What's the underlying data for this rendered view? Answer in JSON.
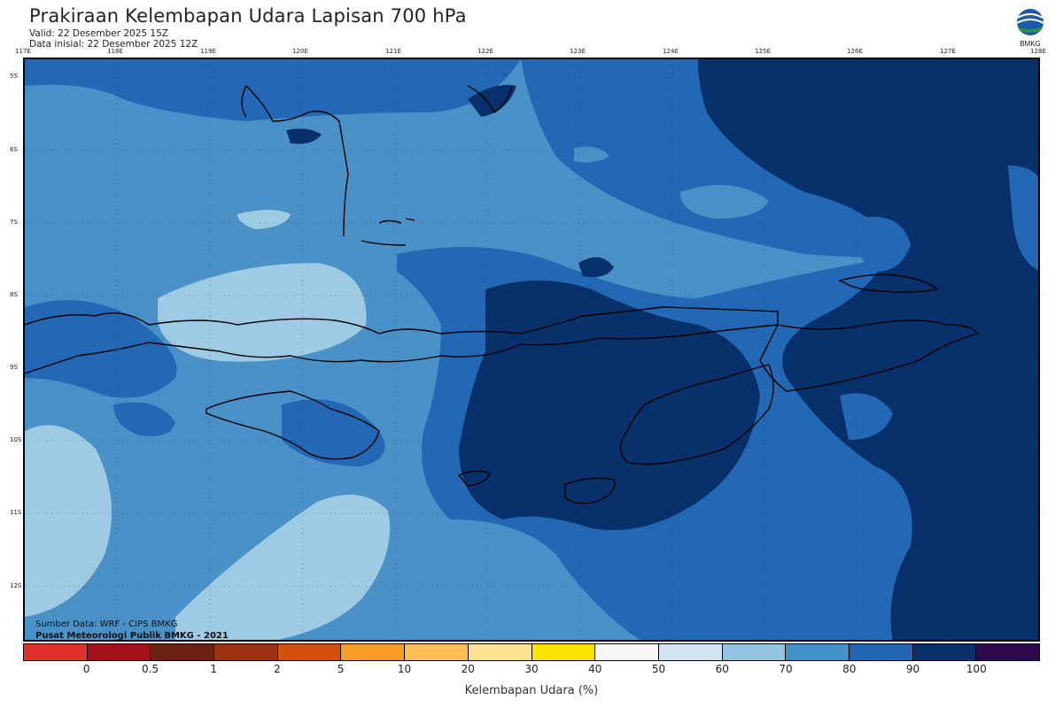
{
  "header": {
    "title": "Prakiraan Kelembapan Udara Lapisan 700 hPa",
    "valid": "Valid: 22 Desember 2025 15Z",
    "init": "Data inisial: 22 Desember 2025 12Z",
    "logo_text": "BMKG"
  },
  "axes": {
    "lon_labels": [
      "117E",
      "118E",
      "119E",
      "120E",
      "121E",
      "122E",
      "123E",
      "124E",
      "125E",
      "126E",
      "127E",
      "128E"
    ],
    "lat_labels": [
      "5S",
      "6S",
      "7S",
      "8S",
      "9S",
      "10S",
      "11S",
      "12S"
    ]
  },
  "credits": {
    "source": "Sumber Data: WRF - CIPS BMKG",
    "org": "Pusat Meteorologi Publik BMKG - 2021"
  },
  "legend": {
    "title": "Kelembapan Udara (%)",
    "labels": [
      "0",
      "0.5",
      "1",
      "2",
      "5",
      "10",
      "20",
      "30",
      "40",
      "50",
      "60",
      "70",
      "80",
      "90",
      "100"
    ],
    "colors": [
      "#e0302b",
      "#a3121b",
      "#6c2313",
      "#993311",
      "#d0520c",
      "#f99d29",
      "#fbbf55",
      "#fde28f",
      "#fde400",
      "#f7f7f7",
      "#d2e4f0",
      "#93c4df",
      "#4292c6",
      "#2167b2",
      "#08306b",
      "#2d0a4e"
    ]
  },
  "map": {
    "fill_colors": {
      "c60": "#9fcae3",
      "c70": "#4a91c8",
      "c80": "#2368b4",
      "c90": "#08306b"
    }
  }
}
